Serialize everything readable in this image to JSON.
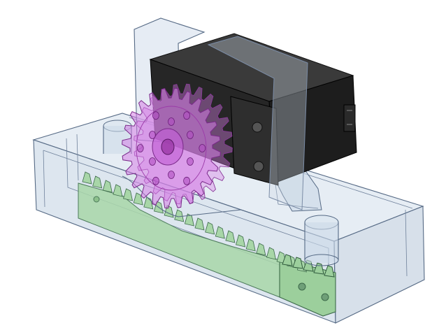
{
  "scene": {
    "kind": "cad-render",
    "background": "#ffffff",
    "parts": [
      {
        "name": "base-housing",
        "material": "translucent",
        "color": "#c9d7e6"
      },
      {
        "name": "servo-motor",
        "material": "solid",
        "color": "#1a1a1a"
      },
      {
        "name": "spur-gear",
        "material": "translucent",
        "color": "#d680e6",
        "teeth": 24
      },
      {
        "name": "gear-rack",
        "material": "solid",
        "color": "#9ccf9c"
      },
      {
        "name": "mounting-posts",
        "material": "translucent",
        "color": "#c9d7e6",
        "count": 2
      }
    ],
    "edge_color": "#566a85"
  }
}
